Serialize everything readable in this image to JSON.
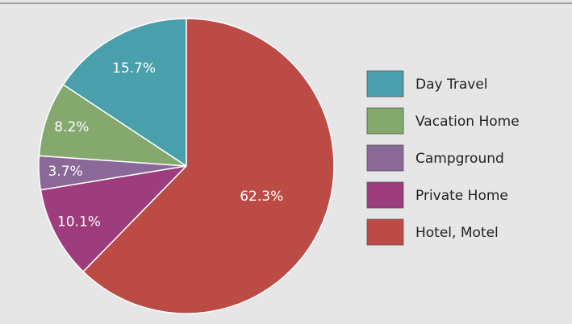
{
  "chart_data": {
    "type": "pie",
    "categories": [
      "Day Travel",
      "Vacation Home",
      "Campground",
      "Private Home",
      "Hotel, Motel"
    ],
    "values": [
      15.7,
      8.2,
      3.7,
      10.1,
      62.3
    ],
    "value_labels": [
      "15.7%",
      "8.2%",
      "3.7%",
      "10.1%",
      "62.3%"
    ],
    "colors": [
      "#4a9fac",
      "#85a86f",
      "#8a6897",
      "#9d3d7d",
      "#bd4b45"
    ],
    "legend": "right"
  }
}
